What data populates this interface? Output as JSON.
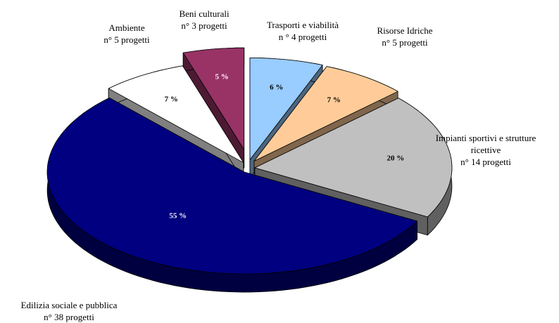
{
  "chart_data": {
    "type": "pie",
    "categories": [
      "Trasporti e viabilità",
      "Risorse Idriche",
      "Impianti sportivi e strutture ricettive",
      "Edilizia sociale e pubblica",
      "Ambiente",
      "Beni culturali"
    ],
    "sublabels": [
      "n ° 4 progetti",
      "n° 5 progetti",
      "n° 14 progetti",
      "n° 38 progetti",
      "n° 5 progetti",
      "n° 3 progetti"
    ],
    "values": [
      6,
      7,
      20,
      55,
      7,
      5
    ],
    "value_labels": [
      "6 %",
      "7 %",
      "20 %",
      "55 %",
      "7 %",
      "5 %"
    ],
    "colors": [
      "#99ccff",
      "#ffcc99",
      "#c0c0c0",
      "#000080",
      "#ffffff",
      "#993366"
    ]
  }
}
